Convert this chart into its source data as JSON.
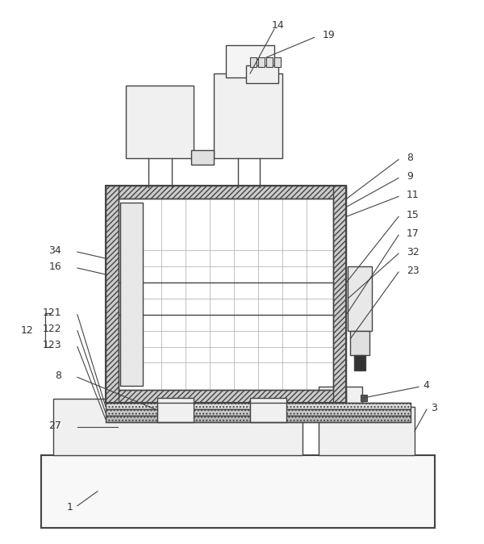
{
  "bg_color": "#ffffff",
  "lc": "#444444",
  "lw": 1.0,
  "tlw": 1.5
}
